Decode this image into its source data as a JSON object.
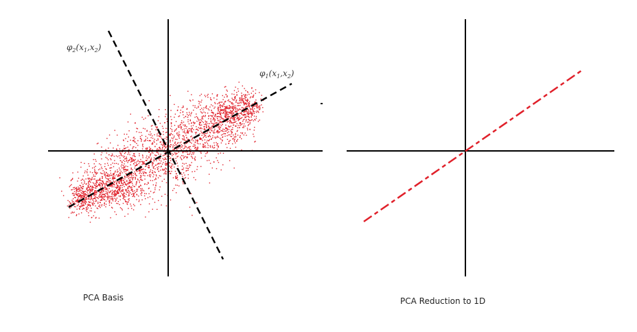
{
  "colors": {
    "axis": "#000000",
    "points": "#e0202a",
    "background": "#ffffff"
  },
  "left_panel": {
    "caption": "PCA Basis",
    "phi2_label": "φ2(x1,x2)",
    "phi1_label": "φ1(x1,x2)",
    "cloud": "red point cloud elongated along the φ1 direction"
  },
  "right_panel": {
    "caption": "PCA Reduction to 1D",
    "projection": "red dashed line of points projected onto one dimension"
  }
}
